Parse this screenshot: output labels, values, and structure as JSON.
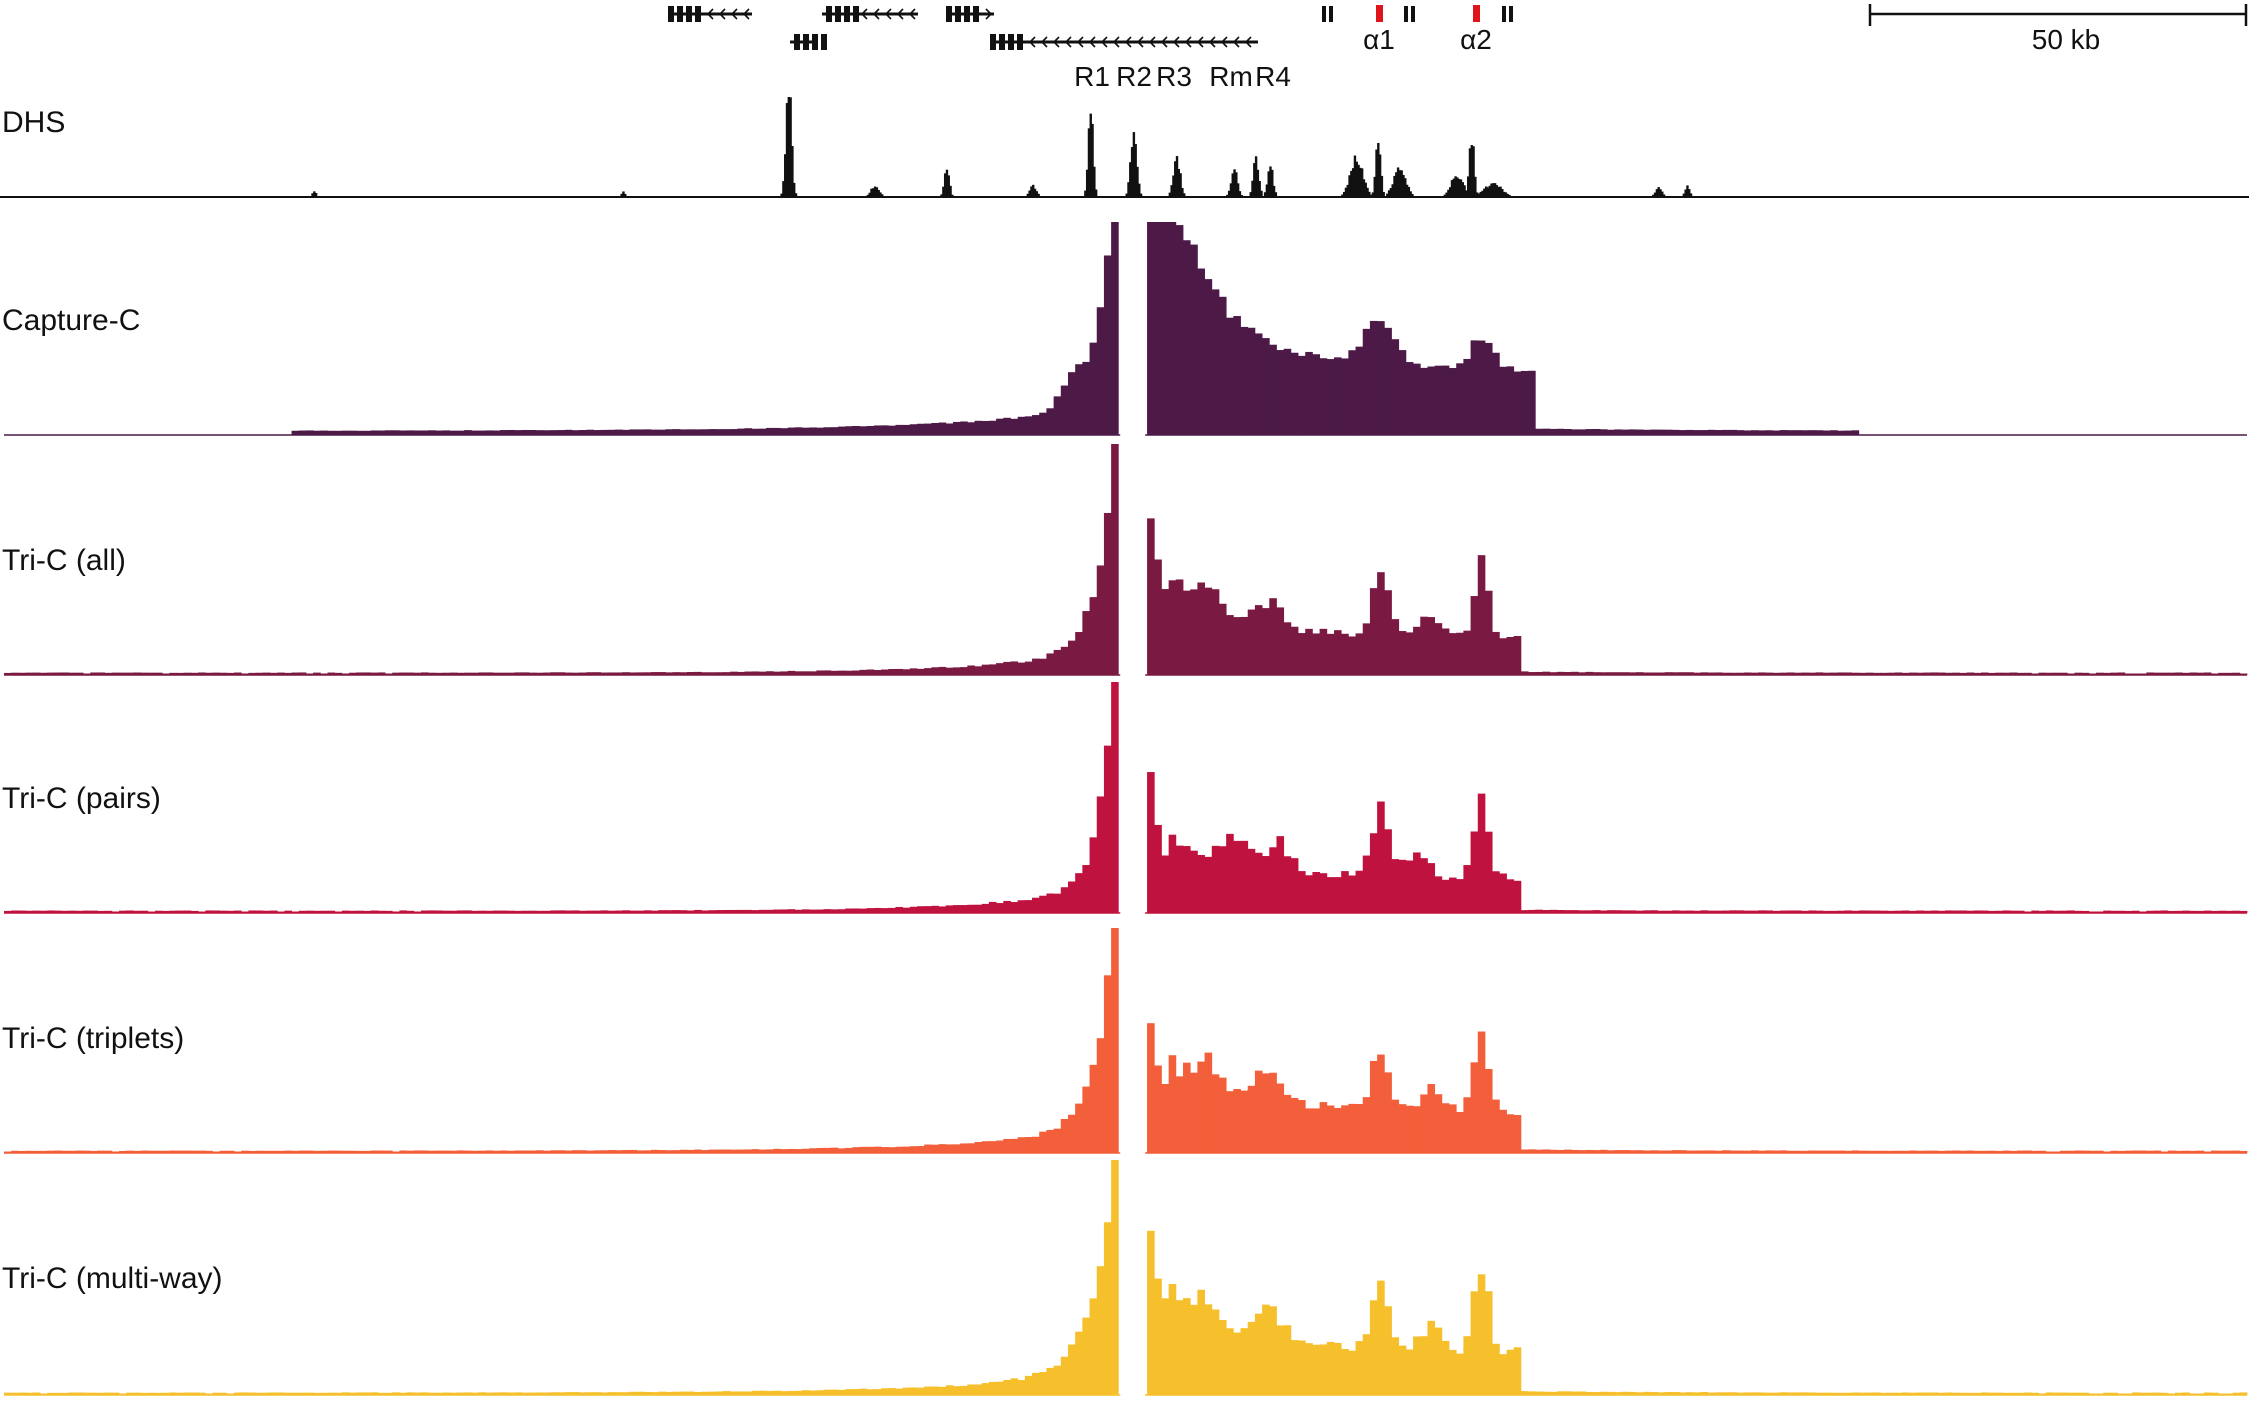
{
  "chart_data": {
    "type": "area",
    "x_unit": "bin",
    "scale_bar": {
      "label": "50 kb"
    },
    "genes": {
      "element_labels": [
        {
          "text": "R1",
          "color": "#111111"
        },
        {
          "text": "R2",
          "color": "#e0141c"
        },
        {
          "text": "R3",
          "color": "#111111"
        },
        {
          "text": "Rm",
          "color": "#111111"
        },
        {
          "text": "R4",
          "color": "#111111"
        }
      ],
      "globin_labels": [
        "α1",
        "α2"
      ],
      "gene_color": "#111111",
      "globin_color": "#e0141c"
    },
    "viewpoint_gap": {
      "from_bin": 155,
      "to_bin": 159
    },
    "tracks": [
      {
        "name": "DHS",
        "color": "#111111",
        "kind": "peaks",
        "baseline": 0.02,
        "peaks": [
          {
            "x": 43,
            "w": 0.5,
            "h": 0.06
          },
          {
            "x": 86,
            "w": 0.5,
            "h": 0.05
          },
          {
            "x": 109,
            "w": 0.8,
            "h": 1.0
          },
          {
            "x": 121,
            "w": 1.2,
            "h": 0.1
          },
          {
            "x": 131,
            "w": 0.7,
            "h": 0.28
          },
          {
            "x": 143,
            "w": 1.0,
            "h": 0.1
          },
          {
            "x": 151,
            "w": 0.7,
            "h": 0.8
          },
          {
            "x": 157,
            "w": 0.9,
            "h": 0.55
          },
          {
            "x": 163,
            "w": 1.0,
            "h": 0.33
          },
          {
            "x": 171,
            "w": 0.9,
            "h": 0.27
          },
          {
            "x": 174,
            "w": 0.8,
            "h": 0.35
          },
          {
            "x": 176,
            "w": 0.8,
            "h": 0.28
          },
          {
            "x": 188,
            "w": 1.8,
            "h": 0.35
          },
          {
            "x": 191,
            "w": 0.7,
            "h": 0.55
          },
          {
            "x": 194,
            "w": 1.8,
            "h": 0.25
          },
          {
            "x": 202,
            "w": 1.8,
            "h": 0.2
          },
          {
            "x": 204,
            "w": 0.7,
            "h": 0.55
          },
          {
            "x": 207,
            "w": 2.5,
            "h": 0.12
          },
          {
            "x": 230,
            "w": 1.0,
            "h": 0.08
          },
          {
            "x": 234,
            "w": 0.7,
            "h": 0.1
          }
        ]
      },
      {
        "name": "Capture-C",
        "color": "#4d1a47",
        "kind": "profile",
        "base": 0.02,
        "min_from": 40,
        "min_to": 258,
        "near_left": {
          "amp": 1.0,
          "decay": 2.6
        },
        "near_right": {
          "amp": 0.98,
          "decay": 7.0
        },
        "plateau": {
          "from": 159,
          "to": 212,
          "level": 0.28
        },
        "floor_decay": 22,
        "floor_amp": 0.05,
        "bumps": [
          {
            "x": 191,
            "h": 0.22,
            "w": 3
          },
          {
            "x": 205,
            "h": 0.15,
            "w": 2
          },
          {
            "x": 148,
            "h": 0.1,
            "w": 2
          },
          {
            "x": 166,
            "h": 0.07,
            "w": 3
          }
        ],
        "noise": 0.12
      },
      {
        "name": "Tri-C (all)",
        "color": "#7a1a42",
        "kind": "profile",
        "base": 0.01,
        "min_from": 0,
        "min_to": 312,
        "near_left": {
          "amp": 0.98,
          "decay": 2.3
        },
        "near_right": {
          "amp": 0.55,
          "decay": 2.5
        },
        "plateau": {
          "from": 162,
          "to": 210,
          "level": 0.15
        },
        "floor_decay": 16,
        "floor_amp": 0.05,
        "bumps": [
          {
            "x": 191,
            "h": 0.3,
            "w": 1.6
          },
          {
            "x": 205,
            "h": 0.32,
            "w": 1.4
          },
          {
            "x": 167,
            "h": 0.13,
            "w": 3
          },
          {
            "x": 175,
            "h": 0.12,
            "w": 3
          },
          {
            "x": 198,
            "h": 0.1,
            "w": 2
          }
        ],
        "noise": 0.2
      },
      {
        "name": "Tri-C (pairs)",
        "color": "#c0123f",
        "kind": "profile",
        "base": 0.01,
        "min_from": 0,
        "min_to": 312,
        "near_left": {
          "amp": 0.97,
          "decay": 2.0
        },
        "near_right": {
          "amp": 0.46,
          "decay": 2.0
        },
        "plateau": {
          "from": 162,
          "to": 210,
          "level": 0.14
        },
        "floor_decay": 15,
        "floor_amp": 0.05,
        "bumps": [
          {
            "x": 191,
            "h": 0.3,
            "w": 1.6
          },
          {
            "x": 205,
            "h": 0.32,
            "w": 1.4
          },
          {
            "x": 171,
            "h": 0.15,
            "w": 3
          },
          {
            "x": 177,
            "h": 0.12,
            "w": 2
          },
          {
            "x": 196,
            "h": 0.12,
            "w": 2
          }
        ],
        "noise": 0.22
      },
      {
        "name": "Tri-C (triplets)",
        "color": "#f25f3a",
        "kind": "profile",
        "base": 0.01,
        "min_from": 0,
        "min_to": 312,
        "near_left": {
          "amp": 0.99,
          "decay": 2.5
        },
        "near_right": {
          "amp": 0.42,
          "decay": 2.4
        },
        "plateau": {
          "from": 162,
          "to": 210,
          "level": 0.17
        },
        "floor_decay": 18,
        "floor_amp": 0.05,
        "bumps": [
          {
            "x": 191,
            "h": 0.26,
            "w": 1.6
          },
          {
            "x": 205,
            "h": 0.32,
            "w": 1.4
          },
          {
            "x": 167,
            "h": 0.14,
            "w": 3
          },
          {
            "x": 175,
            "h": 0.14,
            "w": 3
          },
          {
            "x": 198,
            "h": 0.1,
            "w": 2
          }
        ],
        "noise": 0.2
      },
      {
        "name": "Tri-C (multi-way)",
        "color": "#f5c02c",
        "kind": "profile",
        "base": 0.01,
        "min_from": 0,
        "min_to": 312,
        "near_left": {
          "amp": 1.0,
          "decay": 2.8
        },
        "near_right": {
          "amp": 0.6,
          "decay": 2.8
        },
        "plateau": {
          "from": 162,
          "to": 210,
          "level": 0.17
        },
        "floor_decay": 18,
        "floor_amp": 0.05,
        "bumps": [
          {
            "x": 191,
            "h": 0.28,
            "w": 1.6
          },
          {
            "x": 205,
            "h": 0.36,
            "w": 1.4
          },
          {
            "x": 167,
            "h": 0.14,
            "w": 3
          },
          {
            "x": 175,
            "h": 0.14,
            "w": 3
          },
          {
            "x": 198,
            "h": 0.1,
            "w": 2
          }
        ],
        "noise": 0.2
      }
    ]
  }
}
